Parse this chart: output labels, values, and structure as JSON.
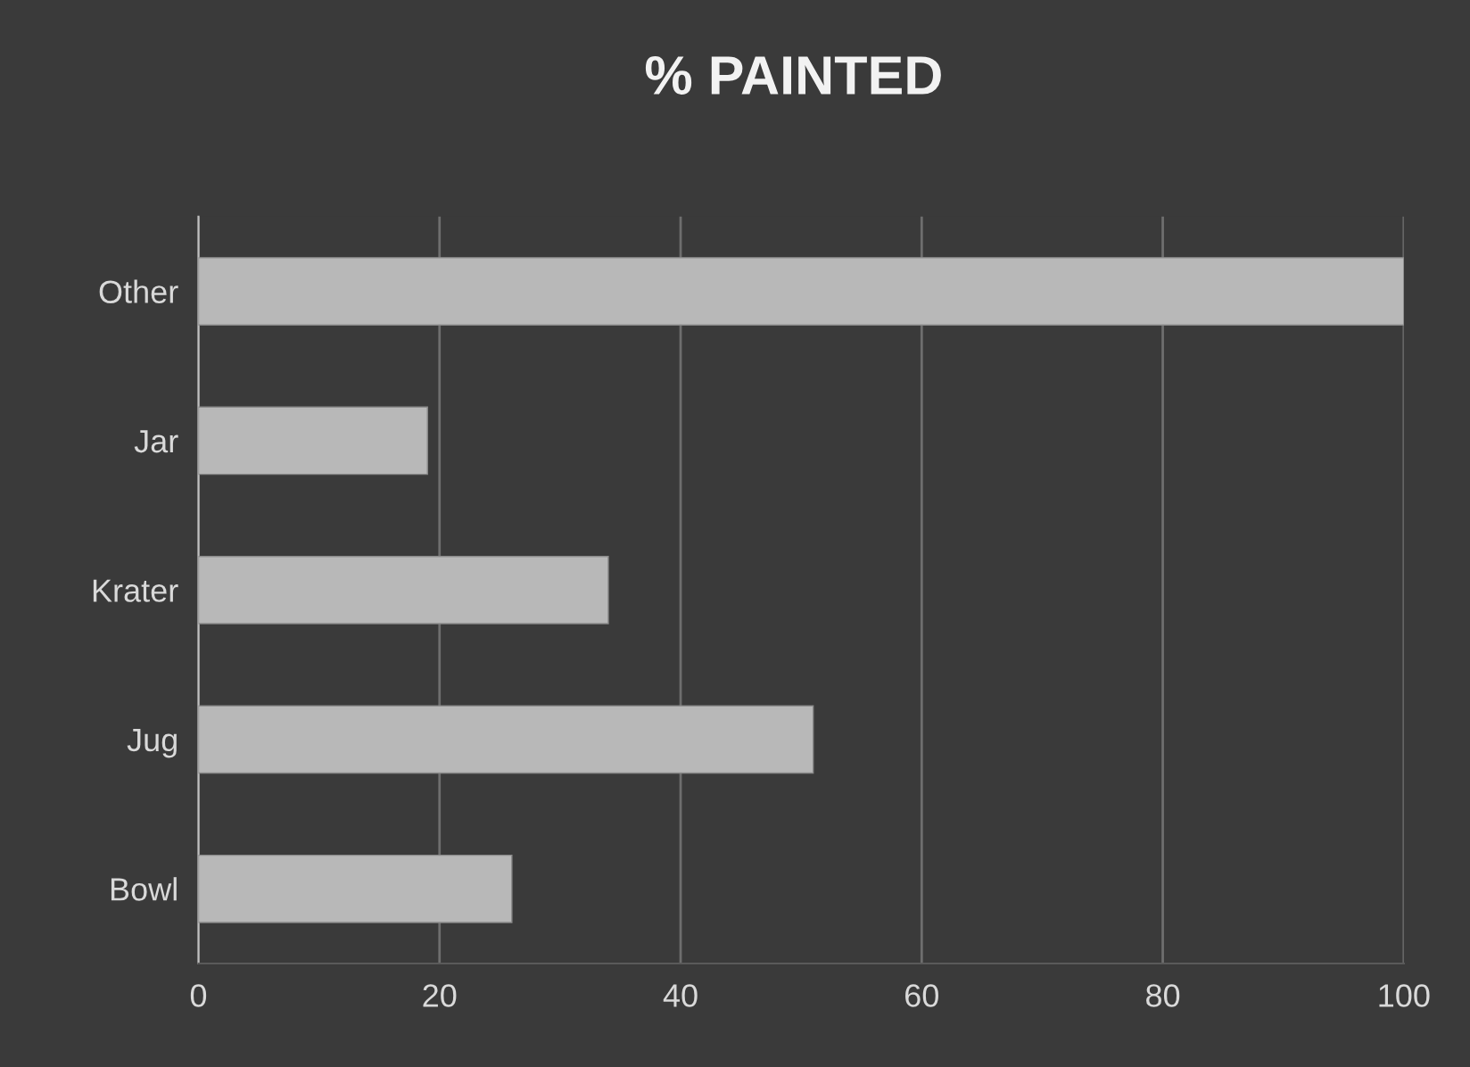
{
  "chart_data": {
    "type": "bar",
    "title": "% PAINTED",
    "orientation": "horizontal",
    "categories": [
      "Other",
      "Jar",
      "Krater",
      "Jug",
      "Bowl"
    ],
    "values": [
      100,
      19,
      34,
      51,
      26
    ],
    "color": "#b8b8b8",
    "xlim": [
      0,
      100
    ],
    "xticks": [
      0,
      20,
      40,
      60,
      80,
      100
    ],
    "grid": "x",
    "legend": false
  }
}
